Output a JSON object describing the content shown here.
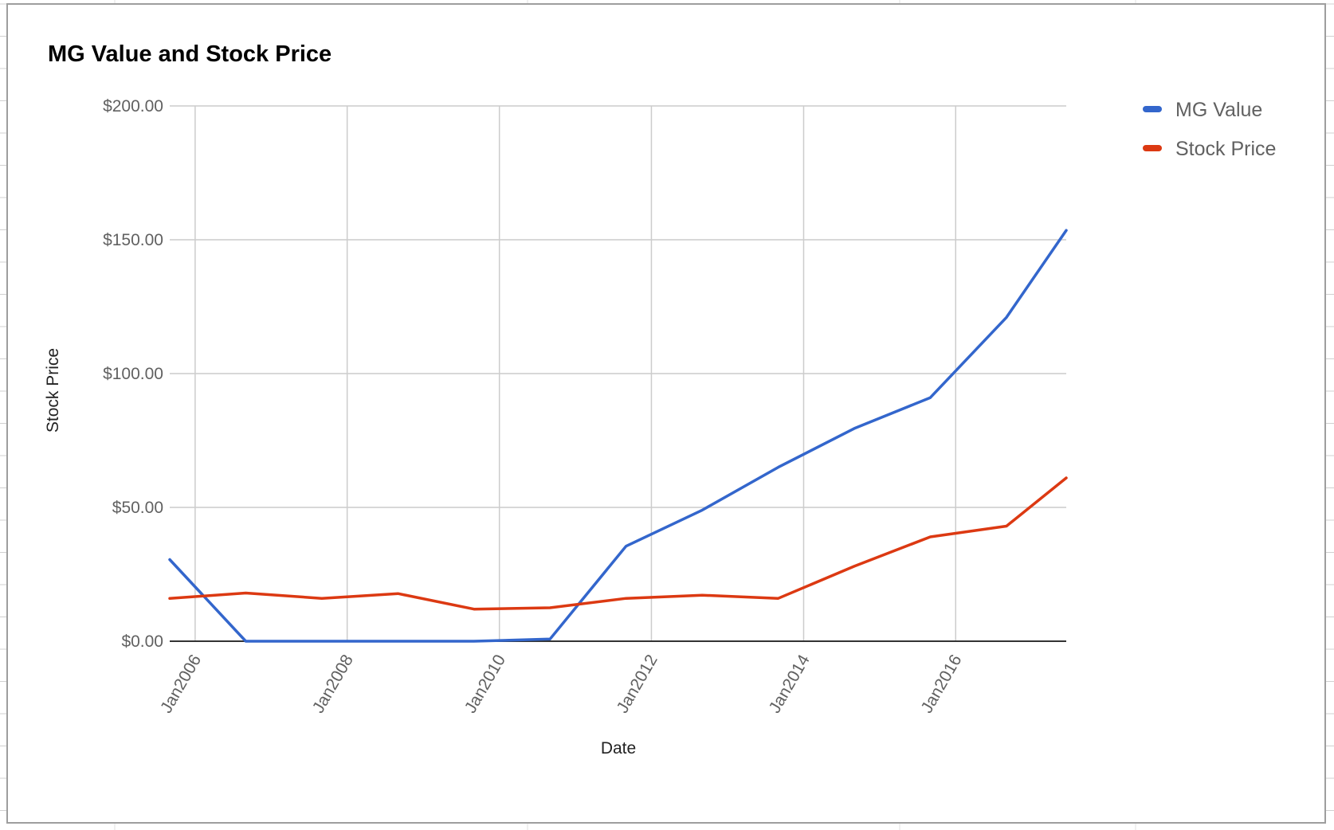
{
  "chart_data": {
    "type": "line",
    "title": "MG Value and Stock Price",
    "xlabel": "Date",
    "ylabel": "Stock Price",
    "ylim": [
      0,
      200
    ],
    "xlim": [
      "2005-09-01",
      "2017-06-15"
    ],
    "y_ticks": [
      {
        "value": 0,
        "label": "$0.00"
      },
      {
        "value": 50,
        "label": "$50.00"
      },
      {
        "value": 100,
        "label": "$100.00"
      },
      {
        "value": 150,
        "label": "$150.00"
      },
      {
        "value": 200,
        "label": "$200.00"
      }
    ],
    "x_ticks": [
      {
        "date": "2006-01-01",
        "label": "Jan2006"
      },
      {
        "date": "2008-01-01",
        "label": "Jan2008"
      },
      {
        "date": "2010-01-01",
        "label": "Jan2010"
      },
      {
        "date": "2012-01-01",
        "label": "Jan2012"
      },
      {
        "date": "2014-01-01",
        "label": "Jan2014"
      },
      {
        "date": "2016-01-01",
        "label": "Jan2016"
      }
    ],
    "grid": true,
    "legend_position": "top-right",
    "series": [
      {
        "name": "MG Value",
        "color": "#3366cc",
        "points": [
          {
            "date": "2005-09-01",
            "value": 30.5
          },
          {
            "date": "2006-09-01",
            "value": 0
          },
          {
            "date": "2009-09-01",
            "value": 0
          },
          {
            "date": "2010-09-01",
            "value": 0.8
          },
          {
            "date": "2011-09-01",
            "value": 35.5
          },
          {
            "date": "2012-09-01",
            "value": 49
          },
          {
            "date": "2013-09-01",
            "value": 65
          },
          {
            "date": "2014-09-01",
            "value": 79.5
          },
          {
            "date": "2015-09-01",
            "value": 91
          },
          {
            "date": "2016-09-01",
            "value": 121
          },
          {
            "date": "2017-06-15",
            "value": 153.5
          }
        ]
      },
      {
        "name": "Stock Price",
        "color": "#dc3912",
        "points": [
          {
            "date": "2005-09-01",
            "value": 16
          },
          {
            "date": "2006-09-01",
            "value": 18
          },
          {
            "date": "2007-09-01",
            "value": 16
          },
          {
            "date": "2008-09-01",
            "value": 17.8
          },
          {
            "date": "2009-09-01",
            "value": 12
          },
          {
            "date": "2010-09-01",
            "value": 12.5
          },
          {
            "date": "2011-09-01",
            "value": 16
          },
          {
            "date": "2012-09-01",
            "value": 17.2
          },
          {
            "date": "2013-09-01",
            "value": 16
          },
          {
            "date": "2014-09-01",
            "value": 28
          },
          {
            "date": "2015-09-01",
            "value": 39
          },
          {
            "date": "2016-09-01",
            "value": 43
          },
          {
            "date": "2017-06-15",
            "value": 61
          }
        ]
      }
    ]
  }
}
